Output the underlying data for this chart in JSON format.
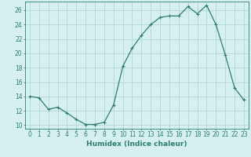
{
  "x": [
    0,
    1,
    2,
    3,
    4,
    5,
    6,
    7,
    8,
    9,
    10,
    11,
    12,
    13,
    14,
    15,
    16,
    17,
    18,
    19,
    20,
    21,
    22,
    23
  ],
  "y": [
    14,
    13.8,
    12.2,
    12.5,
    11.7,
    10.8,
    10.1,
    10.1,
    10.4,
    12.8,
    18.2,
    20.7,
    22.5,
    24.0,
    25.0,
    25.2,
    25.2,
    26.5,
    25.5,
    26.7,
    24.0,
    19.8,
    15.2,
    13.5
  ],
  "line_color": "#2e7d6e",
  "marker": "+",
  "marker_size": 3,
  "marker_linewidth": 0.8,
  "line_width": 0.9,
  "bg_color": "#d6f0f0",
  "grid_color": "#b0d8d8",
  "axis_color": "#2e7d6e",
  "xlabel": "Humidex (Indice chaleur)",
  "xlim": [
    -0.5,
    23.5
  ],
  "ylim": [
    9.5,
    27.2
  ],
  "yticks": [
    10,
    12,
    14,
    16,
    18,
    20,
    22,
    24,
    26
  ],
  "xticks": [
    0,
    1,
    2,
    3,
    4,
    5,
    6,
    7,
    8,
    9,
    10,
    11,
    12,
    13,
    14,
    15,
    16,
    17,
    18,
    19,
    20,
    21,
    22,
    23
  ],
  "tick_fontsize": 5.5,
  "label_fontsize": 6.5
}
